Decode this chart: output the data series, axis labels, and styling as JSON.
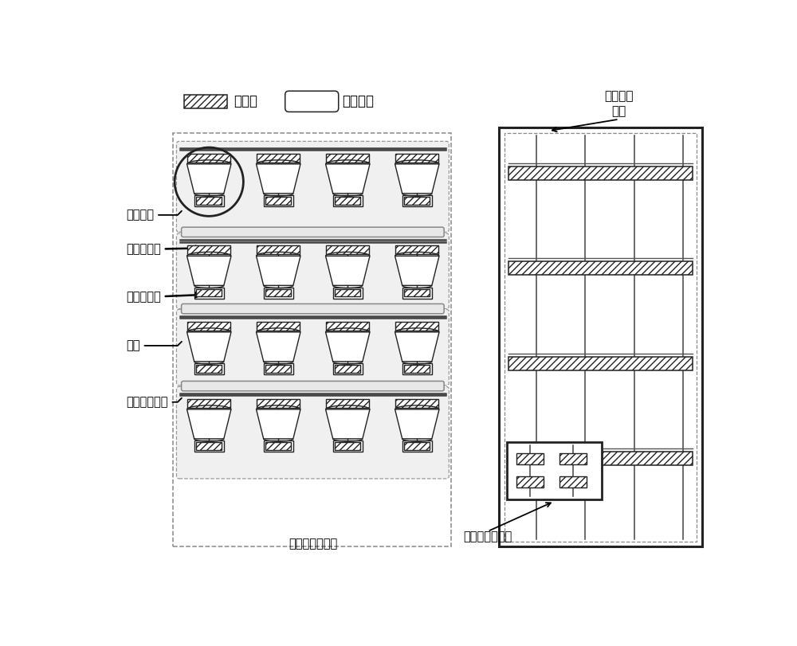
{
  "bg_color": "#ffffff",
  "border_color": "#222222",
  "hatch": "////",
  "legend_register_label": "寄存器",
  "legend_router_label": "路由单元",
  "label_chulidanyuan": "处理单元",
  "label_shurujicunqi": "输入寄存器",
  "label_shuchujicunqi": "输出寄存器",
  "label_luyou": "路由",
  "label_suanshuloji": "算术逻辑单元",
  "label_jicunqidui_sub": "寄存器堆子单元",
  "label_jicunqidui_circuit_line1": "寄存器堆",
  "label_jicunqidui_circuit_line2": "电路"
}
